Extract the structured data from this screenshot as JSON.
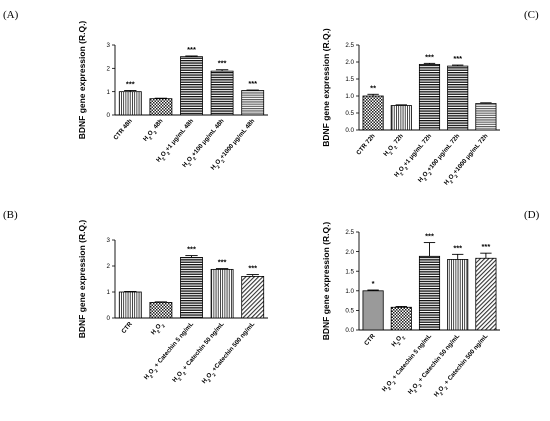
{
  "panels": [
    "(A)",
    "(C)",
    "(B)",
    "(D)"
  ],
  "chart_data": [
    {
      "type": "bar",
      "panel": "(A)",
      "ylabel": "BDNF gene expression (R.Q.)",
      "ylim": [
        0,
        3
      ],
      "yticks": [
        0,
        1,
        2,
        3
      ],
      "categories": [
        "CTR 48h",
        "H2O2 48h",
        "H2O2+1 μg/mL 48h",
        "H2O2+100 μg/mL 48h",
        "H2O2+1000 μg/mL 48h"
      ],
      "values": [
        1.0,
        0.7,
        2.5,
        1.88,
        1.05
      ],
      "errors": [
        0.05,
        0.02,
        0.03,
        0.06,
        0.02
      ],
      "significance": [
        "***",
        "",
        "***",
        "***",
        "***"
      ],
      "patterns": [
        "vstripe",
        "check",
        "hstripe",
        "hstripe",
        "hstripeFine"
      ]
    },
    {
      "type": "bar",
      "panel": "(C)",
      "ylabel": "BDNF gene expression (R.Q.)",
      "ylim": [
        0,
        2.5
      ],
      "yticks": [
        "0.0",
        "0.5",
        "1.0",
        "1.5",
        "2.0",
        "2.5"
      ],
      "categories": [
        "CTR 72h",
        "H2O2 72h",
        "H2O2+1 μg/mL 72h",
        "H2O2+100 μg/mL 72h",
        "H2O2+1000 μg/mL 72h"
      ],
      "values": [
        1.0,
        0.72,
        1.93,
        1.88,
        0.78
      ],
      "errors": [
        0.05,
        0.02,
        0.03,
        0.03,
        0.02
      ],
      "significance": [
        "**",
        "",
        "***",
        "***",
        ""
      ],
      "patterns": [
        "check",
        "vstripe",
        "hstripe",
        "hstripe",
        "hstripeFine"
      ]
    },
    {
      "type": "bar",
      "panel": "(B)",
      "ylabel": "BDNF gene expression (R.Q.)",
      "ylim": [
        0,
        3
      ],
      "yticks": [
        0,
        1,
        2,
        3
      ],
      "categories": [
        "CTR",
        "H2O2",
        "H2O2 + Catechin 5 ng/mL",
        "H2O2 + Catechin 50 ng/mL",
        "H2O2 +Catechin 500 ng/mL"
      ],
      "values": [
        1.0,
        0.6,
        2.33,
        1.87,
        1.6
      ],
      "errors": [
        0.02,
        0.02,
        0.07,
        0.03,
        0.07
      ],
      "significance": [
        "",
        "",
        "***",
        "***",
        "***"
      ],
      "patterns": [
        "vstripe",
        "check",
        "hstripe",
        "vstripe",
        "diag"
      ]
    },
    {
      "type": "bar",
      "panel": "(D)",
      "ylabel": "BDNF gene expression (R.Q.)",
      "ylim": [
        0,
        2.5
      ],
      "yticks": [
        "0.0",
        "0.5",
        "1.0",
        "1.5",
        "2.0",
        "2.5"
      ],
      "categories": [
        "CTR",
        "H2O2",
        "H2O2 + Catechin 5 ng/mL",
        "H2O2 + Catechin 50 ng/mL",
        "H2O2 + Catechin 500 ng/mL"
      ],
      "values": [
        1.0,
        0.58,
        1.88,
        1.8,
        1.83
      ],
      "errors": [
        0.02,
        0.02,
        0.35,
        0.13,
        0.13
      ],
      "significance": [
        "*",
        "",
        "***",
        "***",
        "***"
      ],
      "patterns": [
        "solidgray",
        "check",
        "hstripe",
        "vstripe",
        "diag"
      ]
    }
  ]
}
